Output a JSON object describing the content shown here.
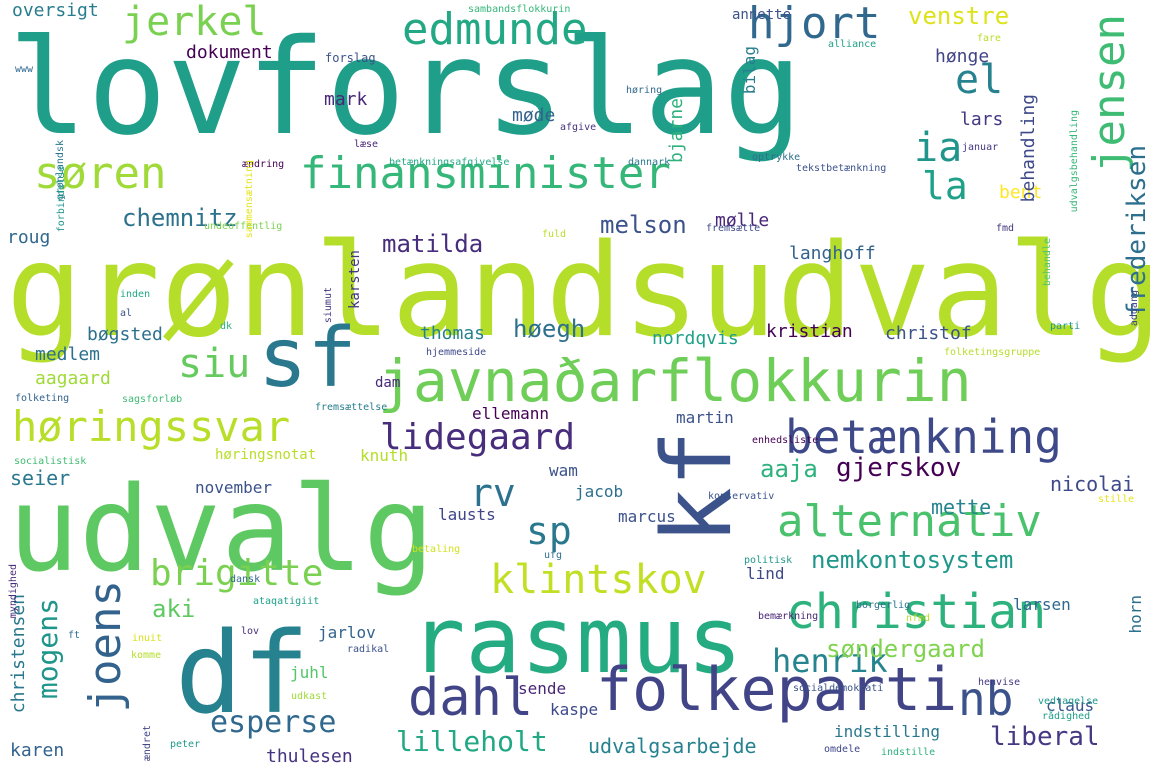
{
  "words": [
    {
      "text": "lovforslag",
      "color": "#1f9e89"
    },
    {
      "text": "grønlandsudvalg",
      "color": "#b5de2b"
    },
    {
      "text": "udvalg",
      "color": "#5ec962"
    },
    {
      "text": "kf",
      "color": "#3b528b"
    },
    {
      "text": "rasmus",
      "color": "#25ab82"
    },
    {
      "text": "df",
      "color": "#26828e"
    },
    {
      "text": "sf",
      "color": "#2a788e"
    },
    {
      "text": "javnaðarflokkurin",
      "color": "#6ece58"
    },
    {
      "text": "folkeparti",
      "color": "#414487"
    },
    {
      "text": "betænkning",
      "color": "#3e4989"
    },
    {
      "text": "finansminister",
      "color": "#35b779"
    },
    {
      "text": "edmunde",
      "color": "#22a884"
    },
    {
      "text": "søren",
      "color": "#a0da39"
    },
    {
      "text": "christian",
      "color": "#2db27d"
    },
    {
      "text": "alternativ",
      "color": "#4ac16d"
    },
    {
      "text": "høringssvar",
      "color": "#b8de29"
    },
    {
      "text": "hjort",
      "color": "#31688e"
    },
    {
      "text": "jensen",
      "color": "#3fbc73"
    },
    {
      "text": "dahl",
      "color": "#414487"
    },
    {
      "text": "lidegaard",
      "color": "#472d7b"
    },
    {
      "text": "klintskov",
      "color": "#c2df23"
    },
    {
      "text": "brigitte",
      "color": "#7ad151"
    },
    {
      "text": "joens",
      "color": "#33638d"
    },
    {
      "text": "nb",
      "color": "#3b528b"
    },
    {
      "text": "jerkel",
      "color": "#7ad151"
    },
    {
      "text": "siu",
      "color": "#65cb5e"
    },
    {
      "text": "ia",
      "color": "#1f958b"
    },
    {
      "text": "el",
      "color": "#26828e"
    },
    {
      "text": "la",
      "color": "#1fa088"
    },
    {
      "text": "rv",
      "color": "#2c728e"
    },
    {
      "text": "sp",
      "color": "#2a788e"
    },
    {
      "text": "esperse",
      "color": "#31688e"
    },
    {
      "text": "lilleholt",
      "color": "#22a884"
    },
    {
      "text": "henrik",
      "color": "#25848e"
    },
    {
      "text": "mogens",
      "color": "#1f958b"
    },
    {
      "text": "nemkontosystem",
      "color": "#1f988b"
    },
    {
      "text": "gjerskov",
      "color": "#440154"
    },
    {
      "text": "søndergaard",
      "color": "#7fd34e"
    },
    {
      "text": "liberal",
      "color": "#443983"
    },
    {
      "text": "frederiksen",
      "color": "#2d708e"
    },
    {
      "text": "chemnitz",
      "color": "#2c728e"
    },
    {
      "text": "matilda",
      "color": "#472d7b"
    },
    {
      "text": "melson",
      "color": "#3b528b"
    },
    {
      "text": "venstre",
      "color": "#dde318"
    },
    {
      "text": "høegh",
      "color": "#2d708e"
    },
    {
      "text": "aaja",
      "color": "#2db27d"
    },
    {
      "text": "aki",
      "color": "#5ec962"
    },
    {
      "text": "udvalgsarbejde",
      "color": "#26828e"
    },
    {
      "text": "christensen",
      "color": "#2a788e"
    },
    {
      "text": "karen",
      "color": "#33638d"
    },
    {
      "text": "thulesen",
      "color": "#46337f"
    },
    {
      "text": "seier",
      "color": "#2a788e"
    },
    {
      "text": "nicolai",
      "color": "#3e4989"
    },
    {
      "text": "mette",
      "color": "#25848e"
    },
    {
      "text": "bøgsted",
      "color": "#2d708e"
    },
    {
      "text": "thomas",
      "color": "#26828e"
    },
    {
      "text": "nordqvis",
      "color": "#1fa088"
    },
    {
      "text": "kristian",
      "color": "#440154"
    },
    {
      "text": "christof",
      "color": "#3b528b"
    },
    {
      "text": "medlem",
      "color": "#2d708e"
    },
    {
      "text": "aagaard",
      "color": "#a0da39"
    },
    {
      "text": "langhoff",
      "color": "#33638d"
    },
    {
      "text": "mølle",
      "color": "#482677"
    },
    {
      "text": "roug",
      "color": "#31688e"
    },
    {
      "text": "bent",
      "color": "#fde725"
    },
    {
      "text": "oversigt",
      "color": "#287d8e"
    },
    {
      "text": "dokument",
      "color": "#440154"
    },
    {
      "text": "mark",
      "color": "#482878"
    },
    {
      "text": "hønge",
      "color": "#414487"
    },
    {
      "text": "møde",
      "color": "#33638d"
    },
    {
      "text": "lars",
      "color": "#453781"
    },
    {
      "text": "behandling",
      "color": "#3e4989"
    },
    {
      "text": "bjarne",
      "color": "#2db27d"
    },
    {
      "text": "bilag",
      "color": "#287d8e"
    },
    {
      "text": "karsten",
      "color": "#453781"
    },
    {
      "text": "ellemann",
      "color": "#440154"
    },
    {
      "text": "martin",
      "color": "#3b528b"
    },
    {
      "text": "wam",
      "color": "#3b528b"
    },
    {
      "text": "jacob",
      "color": "#2d708e"
    },
    {
      "text": "lausts",
      "color": "#404688"
    },
    {
      "text": "marcus",
      "color": "#3b528b"
    },
    {
      "text": "knuth",
      "color": "#b5de2b"
    },
    {
      "text": "november",
      "color": "#3b528b"
    },
    {
      "text": "lind",
      "color": "#3e4989"
    },
    {
      "text": "larsen",
      "color": "#31688e"
    },
    {
      "text": "horn",
      "color": "#2d708e"
    },
    {
      "text": "claus",
      "color": "#3b528b"
    },
    {
      "text": "jarlov",
      "color": "#33638d"
    },
    {
      "text": "juhl",
      "color": "#52c569"
    },
    {
      "text": "sende",
      "color": "#482677"
    },
    {
      "text": "kaspe",
      "color": "#3e4989"
    },
    {
      "text": "indstilling",
      "color": "#2a788e"
    },
    {
      "text": "annette",
      "color": "#3b528b"
    },
    {
      "text": "dam",
      "color": "#482878"
    },
    {
      "text": "høringsnotat",
      "color": "#b8de29"
    },
    {
      "text": "sambandsflokkurin",
      "color": "#35b779"
    },
    {
      "text": "forslag",
      "color": "#3b528b"
    },
    {
      "text": "høring",
      "color": "#31688e"
    },
    {
      "text": "afgive",
      "color": "#46337f"
    },
    {
      "text": "læse",
      "color": "#482677"
    },
    {
      "text": "betænkningsafgivelse",
      "color": "#22a884"
    },
    {
      "text": "dannark",
      "color": "#2a788e"
    },
    {
      "text": "optrykke",
      "color": "#2d708e"
    },
    {
      "text": "januar",
      "color": "#453781"
    },
    {
      "text": "udvalgsbehandling",
      "color": "#35b779"
    },
    {
      "text": "alliance",
      "color": "#1fa088"
    },
    {
      "text": "fare",
      "color": "#b8de29"
    },
    {
      "text": "ændring",
      "color": "#440154"
    },
    {
      "text": "tekstbetænkning",
      "color": "#3b528b"
    },
    {
      "text": "undeoffentlig",
      "color": "#7ad151"
    },
    {
      "text": "fuld",
      "color": "#b8de29"
    },
    {
      "text": "fremsætte",
      "color": "#3e4989"
    },
    {
      "text": "fmd",
      "color": "#453781"
    },
    {
      "text": "behandle",
      "color": "#52c569"
    },
    {
      "text": "inden",
      "color": "#22a884"
    },
    {
      "text": "al",
      "color": "#3b528b"
    },
    {
      "text": "dk",
      "color": "#2db27d"
    },
    {
      "text": "siumut",
      "color": "#453781"
    },
    {
      "text": "adgang",
      "color": "#404688"
    },
    {
      "text": "parti",
      "color": "#1f988b"
    },
    {
      "text": "hjemmeside",
      "color": "#3e4989"
    },
    {
      "text": "folketingsgruppe",
      "color": "#b5de2b"
    },
    {
      "text": "folketing",
      "color": "#33638d"
    },
    {
      "text": "sagsforløb",
      "color": "#3fbc73"
    },
    {
      "text": "fremsættelse",
      "color": "#287d8e"
    },
    {
      "text": "enhedsliste",
      "color": "#440154"
    },
    {
      "text": "socialistisk",
      "color": "#3fbc73"
    },
    {
      "text": "konservativ",
      "color": "#3b528b"
    },
    {
      "text": "stille",
      "color": "#e5e419"
    },
    {
      "text": "myndighed",
      "color": "#472d7b"
    },
    {
      "text": "betaling",
      "color": "#d2e21b"
    },
    {
      "text": "ufg",
      "color": "#2d708e"
    },
    {
      "text": "politisk",
      "color": "#1f988b"
    },
    {
      "text": "dansk",
      "color": "#31688e"
    },
    {
      "text": "ft",
      "color": "#2d708e"
    },
    {
      "text": "ataqatigiit",
      "color": "#1fa088"
    },
    {
      "text": "borgerlig",
      "color": "#2d708e"
    },
    {
      "text": "nfmd",
      "color": "#b8de29"
    },
    {
      "text": "bemærkning",
      "color": "#482677"
    },
    {
      "text": "lov",
      "color": "#472d7b"
    },
    {
      "text": "inuit",
      "color": "#d8e219"
    },
    {
      "text": "komme",
      "color": "#b5de2b"
    },
    {
      "text": "radikal",
      "color": "#3b528b"
    },
    {
      "text": "udkast",
      "color": "#a0da39"
    },
    {
      "text": "socialdemokrati",
      "color": "#3b528b"
    },
    {
      "text": "henvise",
      "color": "#453781"
    },
    {
      "text": "rådighed",
      "color": "#1fa088"
    },
    {
      "text": "vedtagelse",
      "color": "#1f988b"
    },
    {
      "text": "ændret",
      "color": "#414487"
    },
    {
      "text": "peter",
      "color": "#1f988b"
    },
    {
      "text": "omdele",
      "color": "#404688"
    },
    {
      "text": "indstille",
      "color": "#2db27d"
    },
    {
      "text": "grønlandsk",
      "color": "#2a788e"
    },
    {
      "text": "forbindelse",
      "color": "#1f988b"
    },
    {
      "text": "sammensætning",
      "color": "#e5e419"
    },
    {
      "text": "www",
      "color": "#31688e"
    }
  ]
}
